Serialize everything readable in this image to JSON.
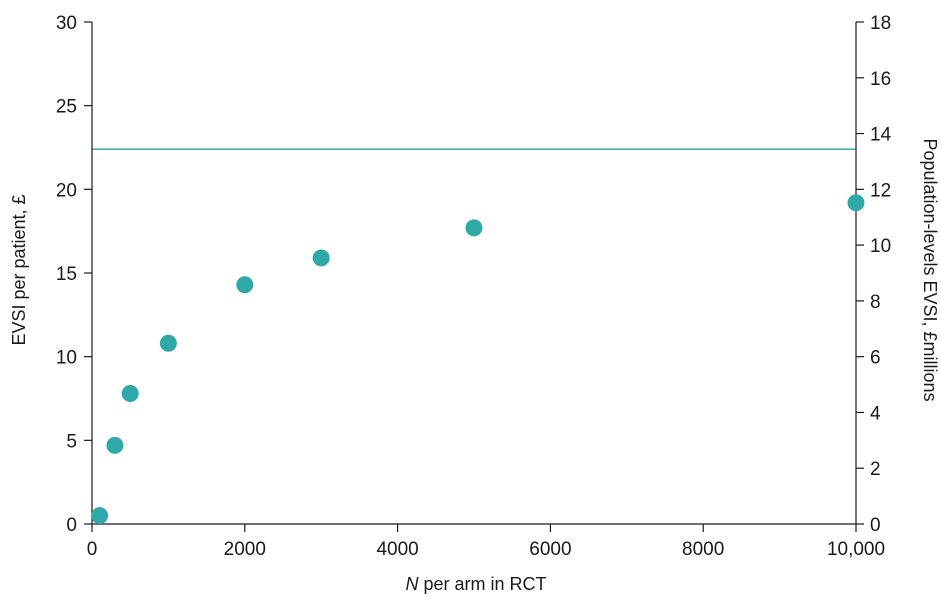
{
  "chart_data": {
    "type": "scatter",
    "x_axis": {
      "label_italic_part": "N",
      "label_rest": " per arm in RCT",
      "range": [
        0,
        10000
      ],
      "ticks": [
        0,
        2000,
        4000,
        6000,
        8000,
        10000
      ],
      "tick_labels": [
        "0",
        "2000",
        "4000",
        "6000",
        "8000",
        "10,000"
      ]
    },
    "y_axis_left": {
      "label": "EVSI per patient, £",
      "range": [
        0,
        30
      ],
      "ticks": [
        0,
        5,
        10,
        15,
        20,
        25,
        30
      ],
      "tick_labels": [
        "0",
        "5",
        "10",
        "15",
        "20",
        "25",
        "30"
      ]
    },
    "y_axis_right": {
      "label": "Population-levels EVSI, £millions",
      "range": [
        0,
        18
      ],
      "ticks": [
        0,
        2,
        4,
        6,
        8,
        10,
        12,
        14,
        16,
        18
      ],
      "tick_labels": [
        "0",
        "2",
        "4",
        "6",
        "8",
        "10",
        "12",
        "14",
        "16",
        "18"
      ]
    },
    "series": [
      {
        "marker_color": "#2fa8a8",
        "points": [
          {
            "x": 100,
            "y": 0.5
          },
          {
            "x": 300,
            "y": 4.7
          },
          {
            "x": 500,
            "y": 7.8
          },
          {
            "x": 1000,
            "y": 10.8
          },
          {
            "x": 2000,
            "y": 14.3
          },
          {
            "x": 3000,
            "y": 15.9
          },
          {
            "x": 5000,
            "y": 17.7
          },
          {
            "x": 10000,
            "y": 19.2
          }
        ]
      }
    ],
    "reference_line": {
      "y": 22.4,
      "color": "#4cb5a8"
    },
    "grid": false,
    "legend": "none"
  }
}
